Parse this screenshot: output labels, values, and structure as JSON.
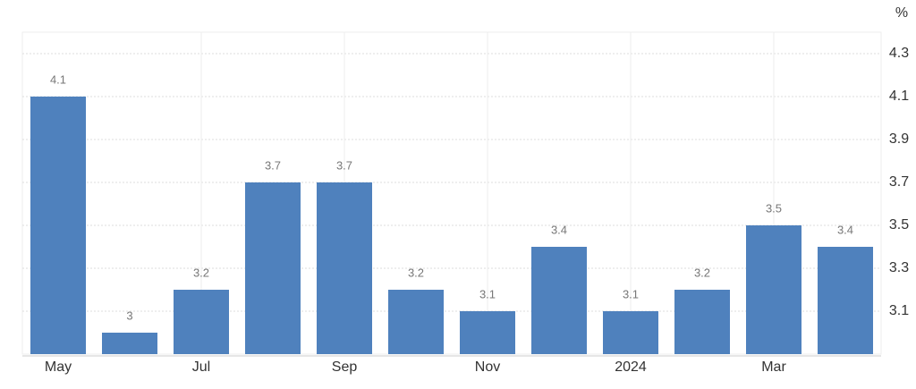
{
  "chart_data": {
    "type": "bar",
    "unit": "%",
    "categories": [
      "May",
      null,
      "Jul",
      null,
      "Sep",
      null,
      "Nov",
      null,
      "2024",
      null,
      "Mar",
      null
    ],
    "values": [
      4.1,
      3,
      3.2,
      3.7,
      3.7,
      3.2,
      3.1,
      3.4,
      3.1,
      3.2,
      3.5,
      3.4
    ],
    "color": "#4f81bd",
    "ylim": [
      2.9,
      4.4
    ],
    "yticks": [
      3.1,
      3.3,
      3.5,
      3.7,
      3.9,
      4.1,
      4.3
    ],
    "grid": true,
    "y_axis_side": "right"
  }
}
